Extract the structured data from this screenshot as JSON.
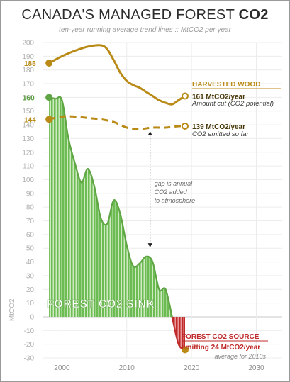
{
  "header": {
    "title_main": "CANADA'S MANAGED FOREST ",
    "title_bold": "CO2",
    "subtitle": "ten-year running average trend lines :: MtCO2 per year"
  },
  "chart_data": {
    "type": "line",
    "title": "CANADA'S MANAGED FOREST CO2",
    "subtitle": "ten-year running average trend lines :: MtCO2 per year",
    "xlabel": "",
    "ylabel": "MtCO2",
    "xlim": [
      1997,
      2034
    ],
    "ylim": [
      -30,
      200
    ],
    "x_ticks": [
      2000,
      2010,
      2020,
      2030
    ],
    "y_ticks": [
      -30,
      -20,
      -10,
      0,
      10,
      20,
      30,
      40,
      50,
      60,
      70,
      80,
      90,
      100,
      110,
      120,
      130,
      140,
      150,
      160,
      170,
      180,
      190,
      200
    ],
    "grid": true,
    "series": [
      {
        "name": "HARVESTED WOOD",
        "style": "solid",
        "color": "#b98a16",
        "x": [
          1998,
          2000,
          2002,
          2004,
          2006,
          2007,
          2008,
          2009,
          2010,
          2011,
          2012,
          2013,
          2014,
          2015,
          2016,
          2017,
          2018,
          2019
        ],
        "y": [
          185,
          190,
          194,
          197,
          198,
          195,
          187,
          178,
          172,
          169,
          167,
          164,
          161,
          158,
          156,
          155,
          158,
          161
        ]
      },
      {
        "name": "CO2 emitted so far",
        "style": "dashed",
        "color": "#b98a16",
        "x": [
          1998,
          2000,
          2002,
          2004,
          2006,
          2008,
          2010,
          2012,
          2014,
          2016,
          2018,
          2019
        ],
        "y": [
          144,
          146,
          146,
          145,
          144,
          142,
          138,
          137,
          138,
          138,
          139,
          139
        ]
      },
      {
        "name": "FOREST CO2 SINK",
        "style": "area",
        "color": "#6dbb53",
        "x": [
          1998,
          1999,
          2000,
          2001,
          2002,
          2003,
          2004,
          2005,
          2006,
          2007,
          2008,
          2009,
          2010,
          2011,
          2012,
          2013,
          2014,
          2015,
          2016,
          2017,
          2018,
          2019
        ],
        "y": [
          160,
          159,
          158,
          130,
          112,
          98,
          108,
          95,
          72,
          68,
          85,
          75,
          52,
          37,
          39,
          44,
          40,
          20,
          20,
          0,
          -20,
          -24
        ]
      }
    ],
    "annotations": {
      "harvest_start": "185",
      "harvest_label": "HARVESTED WOOD",
      "harvest_value": "161 MtCO2/year",
      "harvest_desc": "Amount cut (CO2 potential)",
      "emitted_start": "144",
      "emitted_value": "139 MtCO2/year",
      "emitted_desc": "CO2 emitted so far",
      "sink_start": "160",
      "sink_label": "FOREST CO2 SINK",
      "gap_line1": "gap is annual",
      "gap_line2": "CO2 added",
      "gap_line3": "to atmosphere",
      "source_label": "FOREST CO2 SOURCE",
      "source_value": "emitting 24 MtCO2/year",
      "source_desc": "average for 2010s"
    },
    "colors": {
      "harvest": "#b98a16",
      "sink": "#6dbb53",
      "source": "#c02a2a"
    }
  }
}
